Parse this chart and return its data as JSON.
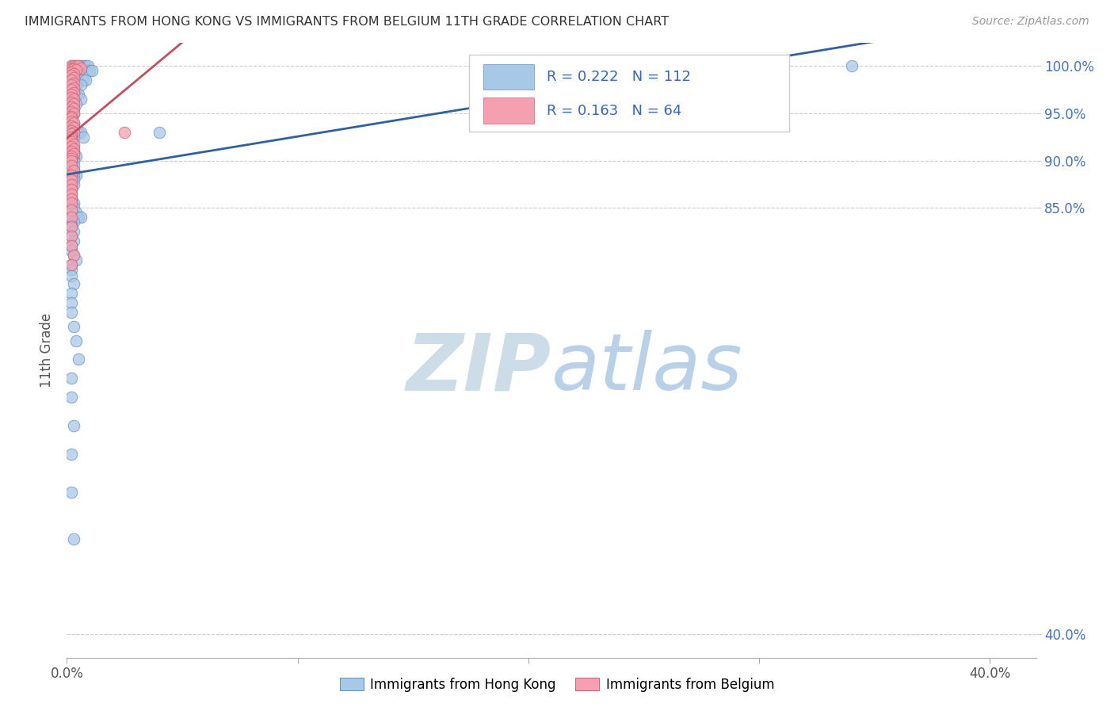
{
  "title": "IMMIGRANTS FROM HONG KONG VS IMMIGRANTS FROM BELGIUM 11TH GRADE CORRELATION CHART",
  "source": "Source: ZipAtlas.com",
  "ylabel": "11th Grade",
  "ytick_labels": [
    "100.0%",
    "95.0%",
    "90.0%",
    "85.0%",
    "40.0%"
  ],
  "ytick_values": [
    1.0,
    0.95,
    0.9,
    0.85,
    0.4
  ],
  "legend_blue_R": "R = 0.222",
  "legend_blue_N": "N = 112",
  "legend_pink_R": "R = 0.163",
  "legend_pink_N": "N = 64",
  "legend_label_blue": "Immigrants from Hong Kong",
  "legend_label_pink": "Immigrants from Belgium",
  "blue_color": "#a8c8e8",
  "pink_color": "#f4a0b0",
  "blue_edge_color": "#6090c0",
  "pink_edge_color": "#d06070",
  "blue_line_color": "#3060a0",
  "pink_line_color": "#c05060",
  "watermark_zip_color": "#c8dff0",
  "watermark_atlas_color": "#c8dff0",
  "background_color": "#ffffff",
  "blue_scatter_x": [
    0.002,
    0.003,
    0.004,
    0.005,
    0.006,
    0.007,
    0.008,
    0.009,
    0.01,
    0.011,
    0.002,
    0.003,
    0.005,
    0.007,
    0.008,
    0.003,
    0.004,
    0.006,
    0.002,
    0.003,
    0.002,
    0.001,
    0.003,
    0.004,
    0.005,
    0.006,
    0.002,
    0.003,
    0.002,
    0.003,
    0.004,
    0.002,
    0.003,
    0.002,
    0.003,
    0.002,
    0.003,
    0.002,
    0.002,
    0.002,
    0.003,
    0.002,
    0.003,
    0.002,
    0.004,
    0.005,
    0.006,
    0.007,
    0.002,
    0.003,
    0.002,
    0.002,
    0.002,
    0.003,
    0.002,
    0.003,
    0.002,
    0.004,
    0.003,
    0.002,
    0.003,
    0.002,
    0.003,
    0.002,
    0.003,
    0.002,
    0.004,
    0.003,
    0.002,
    0.003,
    0.002,
    0.003,
    0.002,
    0.002,
    0.002,
    0.003,
    0.002,
    0.002,
    0.003,
    0.002,
    0.004,
    0.005,
    0.006,
    0.002,
    0.003,
    0.002,
    0.002,
    0.003,
    0.002,
    0.003,
    0.002,
    0.002,
    0.003,
    0.004,
    0.002,
    0.002,
    0.002,
    0.003,
    0.002,
    0.002,
    0.002,
    0.003,
    0.004,
    0.005,
    0.002,
    0.002,
    0.003,
    0.002,
    0.002,
    0.003,
    0.04,
    0.34
  ],
  "blue_scatter_y": [
    1.0,
    1.0,
    1.0,
    1.0,
    1.0,
    1.0,
    1.0,
    1.0,
    0.995,
    0.995,
    0.99,
    0.99,
    0.99,
    0.985,
    0.985,
    0.98,
    0.98,
    0.98,
    0.975,
    0.975,
    0.975,
    0.975,
    0.97,
    0.97,
    0.97,
    0.965,
    0.965,
    0.965,
    0.96,
    0.96,
    0.96,
    0.955,
    0.955,
    0.955,
    0.95,
    0.95,
    0.95,
    0.945,
    0.945,
    0.94,
    0.94,
    0.94,
    0.935,
    0.935,
    0.93,
    0.93,
    0.93,
    0.925,
    0.925,
    0.925,
    0.92,
    0.92,
    0.915,
    0.915,
    0.915,
    0.91,
    0.91,
    0.905,
    0.905,
    0.905,
    0.9,
    0.9,
    0.895,
    0.895,
    0.89,
    0.89,
    0.885,
    0.885,
    0.88,
    0.88,
    0.875,
    0.875,
    0.87,
    0.865,
    0.86,
    0.855,
    0.855,
    0.85,
    0.85,
    0.845,
    0.845,
    0.84,
    0.84,
    0.838,
    0.835,
    0.832,
    0.83,
    0.825,
    0.82,
    0.815,
    0.81,
    0.805,
    0.8,
    0.795,
    0.79,
    0.785,
    0.778,
    0.77,
    0.76,
    0.75,
    0.74,
    0.725,
    0.71,
    0.69,
    0.67,
    0.65,
    0.62,
    0.59,
    0.55,
    0.5,
    0.93,
    1.0
  ],
  "pink_scatter_x": [
    0.002,
    0.003,
    0.004,
    0.005,
    0.006,
    0.002,
    0.003,
    0.004,
    0.002,
    0.003,
    0.002,
    0.003,
    0.002,
    0.003,
    0.002,
    0.003,
    0.002,
    0.003,
    0.002,
    0.002,
    0.003,
    0.002,
    0.003,
    0.002,
    0.003,
    0.002,
    0.003,
    0.002,
    0.002,
    0.002,
    0.003,
    0.002,
    0.003,
    0.002,
    0.003,
    0.002,
    0.002,
    0.002,
    0.002,
    0.003,
    0.002,
    0.003,
    0.002,
    0.003,
    0.002,
    0.002,
    0.002,
    0.002,
    0.003,
    0.002,
    0.002,
    0.002,
    0.002,
    0.002,
    0.002,
    0.002,
    0.002,
    0.002,
    0.002,
    0.002,
    0.002,
    0.025,
    0.003,
    0.002
  ],
  "pink_scatter_y": [
    1.0,
    1.0,
    1.0,
    1.0,
    0.998,
    0.997,
    0.997,
    0.996,
    0.994,
    0.992,
    0.99,
    0.988,
    0.985,
    0.982,
    0.98,
    0.977,
    0.975,
    0.972,
    0.97,
    0.967,
    0.965,
    0.962,
    0.96,
    0.957,
    0.955,
    0.952,
    0.95,
    0.947,
    0.945,
    0.942,
    0.94,
    0.937,
    0.935,
    0.932,
    0.93,
    0.928,
    0.925,
    0.922,
    0.92,
    0.917,
    0.915,
    0.912,
    0.91,
    0.907,
    0.905,
    0.902,
    0.9,
    0.895,
    0.89,
    0.885,
    0.88,
    0.875,
    0.87,
    0.865,
    0.86,
    0.855,
    0.848,
    0.84,
    0.83,
    0.82,
    0.81,
    0.93,
    0.8,
    0.79
  ],
  "xlim": [
    0.0,
    0.42
  ],
  "ylim": [
    0.375,
    1.025
  ],
  "xtick_positions": [
    0.0,
    0.1,
    0.2,
    0.3,
    0.4
  ],
  "xtick_labels": [
    "0.0%",
    "",
    "",
    "",
    "40.0%"
  ]
}
